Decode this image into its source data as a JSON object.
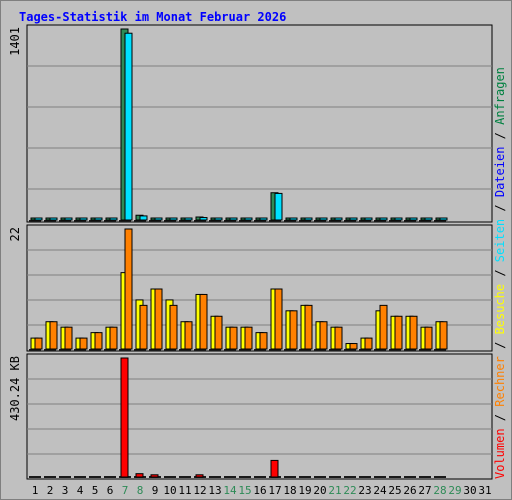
{
  "title": "Tages-Statistik im Monat Februar 2026",
  "right_legend": [
    {
      "text": "Volumen",
      "color": "#ff0000"
    },
    {
      "text": " / ",
      "color": "#000000"
    },
    {
      "text": "Rechner",
      "color": "#ff8000"
    },
    {
      "text": " / ",
      "color": "#000000"
    },
    {
      "text": "Besuche",
      "color": "#ffff00"
    },
    {
      "text": " / ",
      "color": "#000000"
    },
    {
      "text": "Seiten",
      "color": "#00e0ff"
    },
    {
      "text": " / ",
      "color": "#000000"
    },
    {
      "text": "Dateien",
      "color": "#0000ff"
    },
    {
      "text": " / ",
      "color": "#000000"
    },
    {
      "text": "Anfragen",
      "color": "#008040"
    }
  ],
  "chart_data": {
    "type": "bar",
    "categories": [
      "1",
      "2",
      "3",
      "4",
      "5",
      "6",
      "7",
      "8",
      "9",
      "10",
      "11",
      "12",
      "13",
      "14",
      "15",
      "16",
      "17",
      "18",
      "19",
      "20",
      "21",
      "22",
      "23",
      "24",
      "25",
      "26",
      "27",
      "28",
      "29",
      "30",
      "31"
    ],
    "weekend_days": [
      "7",
      "8",
      "14",
      "15",
      "21",
      "22",
      "28",
      "29"
    ],
    "colors": {
      "weekday": "#2f6f2f",
      "weekend": "#2e8b57",
      "grid": "#808080",
      "frame": "#000000"
    },
    "panels": [
      {
        "name": "requests",
        "ymax_label": "1401",
        "ymax": 1401,
        "series": [
          {
            "name": "Anfragen",
            "color": "#2e8b57",
            "values": [
              5,
              5,
              12,
              5,
              5,
              5,
              1401,
              35,
              12,
              12,
              5,
              22,
              5,
              12,
              5,
              5,
              200,
              12,
              12,
              5,
              5,
              5,
              5,
              12,
              5,
              5,
              5,
              5,
              null,
              null,
              null
            ]
          },
          {
            "name": "Seiten",
            "color": "#00e0ff",
            "values": [
              5,
              5,
              10,
              5,
              5,
              5,
              1370,
              30,
              10,
              10,
              5,
              18,
              5,
              10,
              5,
              5,
              195,
              10,
              10,
              5,
              5,
              5,
              5,
              5,
              5,
              5,
              5,
              5,
              null,
              null,
              null
            ]
          }
        ]
      },
      {
        "name": "visits",
        "ymax_label": "22",
        "ymax": 22,
        "series": [
          {
            "name": "Besuche",
            "color": "#ffff00",
            "values": [
              2,
              5,
              4,
              2,
              3,
              4,
              14,
              9,
              11,
              9,
              5,
              10,
              6,
              4,
              4,
              3,
              11,
              7,
              8,
              5,
              4,
              1,
              2,
              7,
              6,
              6,
              4,
              5,
              null,
              null,
              null
            ]
          },
          {
            "name": "Rechner",
            "color": "#ff8000",
            "values": [
              2,
              5,
              4,
              2,
              3,
              4,
              22,
              8,
              11,
              8,
              5,
              10,
              6,
              4,
              4,
              3,
              11,
              7,
              8,
              5,
              4,
              1,
              2,
              8,
              6,
              6,
              4,
              5,
              null,
              null,
              null
            ]
          }
        ]
      },
      {
        "name": "volume",
        "ymax_label": "430.24 KB",
        "ymax": 430.24,
        "series": [
          {
            "name": "Volumen",
            "color": "#ff0000",
            "values": [
              0,
              0,
              0,
              0,
              0,
              0,
              430.24,
              12,
              8,
              0,
              0,
              8,
              0,
              0,
              0,
              0,
              60,
              0,
              0,
              0,
              0,
              0,
              0,
              0,
              0,
              0,
              0,
              0,
              null,
              null,
              null
            ]
          }
        ]
      }
    ]
  }
}
